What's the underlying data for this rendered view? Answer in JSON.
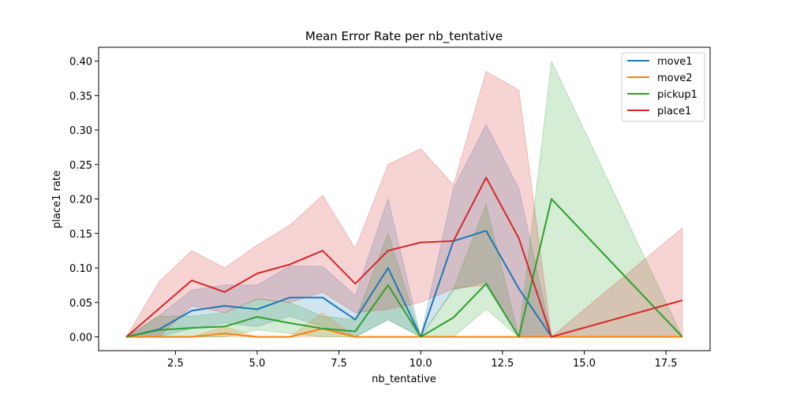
{
  "chart_data": {
    "type": "line",
    "title": "Mean Error Rate per nb_tentative",
    "xlabel": "nb_tentative",
    "ylabel": "place1 rate",
    "xlim": [
      0.15,
      18.85
    ],
    "ylim": [
      -0.02,
      0.42
    ],
    "xticks": [
      2.5,
      5.0,
      7.5,
      10.0,
      12.5,
      15.0,
      17.5
    ],
    "yticks": [
      0.0,
      0.05,
      0.1,
      0.15,
      0.2,
      0.25,
      0.3,
      0.35,
      0.4
    ],
    "legend_position": "top-right",
    "series": [
      {
        "name": "move1",
        "color": "#1f77b4",
        "x": [
          1,
          2,
          3,
          4,
          5,
          6,
          7,
          8,
          9,
          10,
          11,
          12,
          13,
          14,
          18
        ],
        "y": [
          0.0,
          0.011,
          0.038,
          0.045,
          0.04,
          0.057,
          0.057,
          0.025,
          0.1,
          0.0,
          0.139,
          0.154,
          0.07,
          0.0,
          0.0
        ],
        "ci_low": [
          0.0,
          0.0,
          0.012,
          0.02,
          0.015,
          0.03,
          0.015,
          0.0,
          0.025,
          0.0,
          0.068,
          0.08,
          0.0,
          0.0,
          0.0
        ],
        "ci_high": [
          0.0,
          0.031,
          0.068,
          0.075,
          0.075,
          0.103,
          0.102,
          0.06,
          0.2,
          0.0,
          0.215,
          0.308,
          0.215,
          0.0,
          0.0
        ]
      },
      {
        "name": "move2",
        "color": "#ff7f0e",
        "x": [
          1,
          2,
          3,
          4,
          5,
          6,
          7,
          8,
          9,
          10,
          11,
          12,
          13,
          14,
          18
        ],
        "y": [
          0.0,
          0.0,
          0.0,
          0.005,
          0.0,
          0.0,
          0.012,
          0.0,
          0.0,
          0.0,
          0.0,
          0.0,
          0.0,
          0.0,
          0.0
        ],
        "ci_low": [
          0.0,
          0.0,
          0.0,
          0.0,
          0.0,
          0.0,
          0.0,
          0.0,
          0.0,
          0.0,
          0.0,
          0.0,
          0.0,
          0.0,
          0.0
        ],
        "ci_high": [
          0.0,
          0.0,
          0.0,
          0.015,
          0.0,
          0.0,
          0.035,
          0.0,
          0.0,
          0.0,
          0.0,
          0.0,
          0.0,
          0.0,
          0.0
        ]
      },
      {
        "name": "pickup1",
        "color": "#2ca02c",
        "x": [
          1,
          2,
          3,
          4,
          5,
          6,
          7,
          8,
          9,
          10,
          11,
          12,
          13,
          14,
          18
        ],
        "y": [
          0.0,
          0.01,
          0.013,
          0.015,
          0.029,
          0.02,
          0.012,
          0.008,
          0.075,
          0.0,
          0.028,
          0.077,
          0.0,
          0.2,
          0.0
        ],
        "ci_low": [
          0.0,
          0.0,
          0.0,
          0.0,
          0.01,
          0.005,
          0.0,
          0.0,
          0.025,
          0.0,
          0.0,
          0.04,
          0.0,
          0.0,
          0.0
        ],
        "ci_high": [
          0.0,
          0.03,
          0.03,
          0.035,
          0.055,
          0.05,
          0.03,
          0.025,
          0.15,
          0.0,
          0.07,
          0.192,
          0.0,
          0.4,
          0.0
        ]
      },
      {
        "name": "place1",
        "color": "#d62728",
        "x": [
          1,
          2,
          3,
          4,
          5,
          6,
          7,
          8,
          9,
          10,
          11,
          12,
          13,
          14,
          18
        ],
        "y": [
          0.0,
          0.041,
          0.082,
          0.065,
          0.092,
          0.105,
          0.125,
          0.077,
          0.125,
          0.137,
          0.139,
          0.231,
          0.143,
          0.0,
          0.053
        ],
        "ci_low": [
          0.0,
          0.0,
          0.045,
          0.035,
          0.055,
          0.05,
          0.065,
          0.035,
          0.04,
          0.05,
          0.07,
          0.075,
          0.0,
          0.0,
          0.0
        ],
        "ci_high": [
          0.0,
          0.08,
          0.125,
          0.1,
          0.133,
          0.162,
          0.205,
          0.128,
          0.25,
          0.273,
          0.22,
          0.385,
          0.358,
          0.0,
          0.158
        ]
      }
    ]
  }
}
